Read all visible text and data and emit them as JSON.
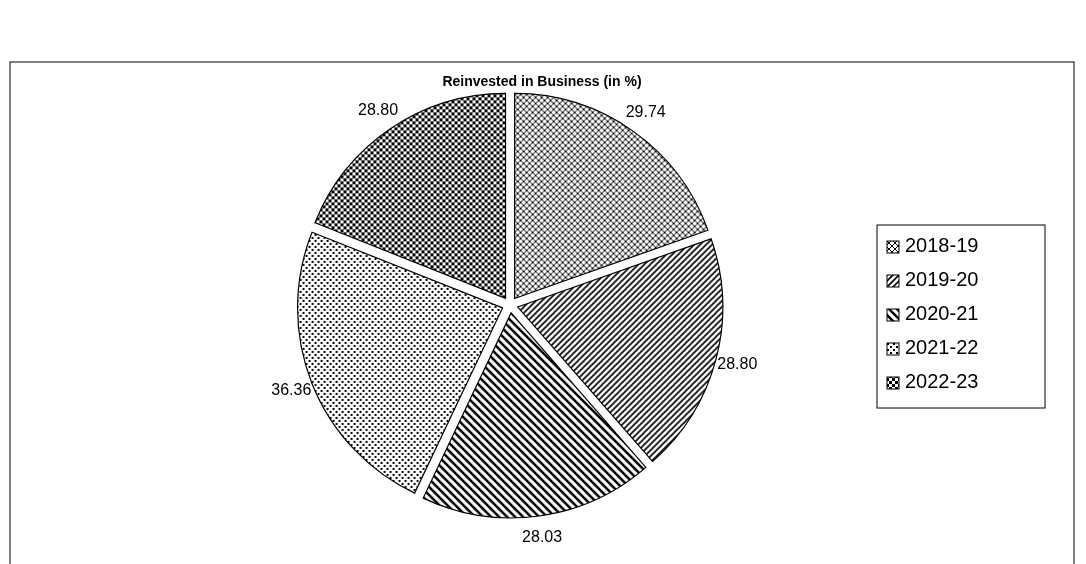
{
  "chart_data": {
    "type": "pie",
    "title": "Reinvested in Business (in %)",
    "categories": [
      "2018-19",
      "2019-20",
      "2020-21",
      "2021-22",
      "2022-23"
    ],
    "values": [
      29.74,
      28.8,
      28.03,
      36.36,
      28.8
    ],
    "value_labels": [
      "29.74",
      "28.80",
      "28.03",
      "36.36",
      "28.80"
    ],
    "colors": [
      "#000000",
      "#000000",
      "#000000",
      "#000000",
      "#000000"
    ],
    "legend": "right"
  }
}
